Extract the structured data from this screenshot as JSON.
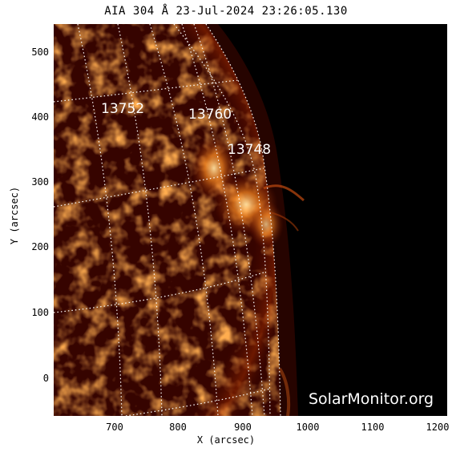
{
  "title": "AIA 304 Å 23-Jul-2024 23:26:05.130",
  "axes": {
    "xlabel": "X (arcsec)",
    "ylabel": "Y (arcsec)",
    "xticks": [
      "700",
      "800",
      "900",
      "1000",
      "1100",
      "1200"
    ],
    "yticks": [
      "500",
      "400",
      "300",
      "200",
      "100",
      "0"
    ]
  },
  "regions": [
    {
      "label": "13752"
    },
    {
      "label": "13760"
    },
    {
      "label": "13748"
    }
  ],
  "watermark": "SolarMonitor.org",
  "colors": {
    "background": "#ffffff",
    "sky": "#000000",
    "disk_dark": "#3a0500",
    "disk_mid": "#8a1a00",
    "bright": "#ffb040",
    "grid": "#ffffff"
  }
}
